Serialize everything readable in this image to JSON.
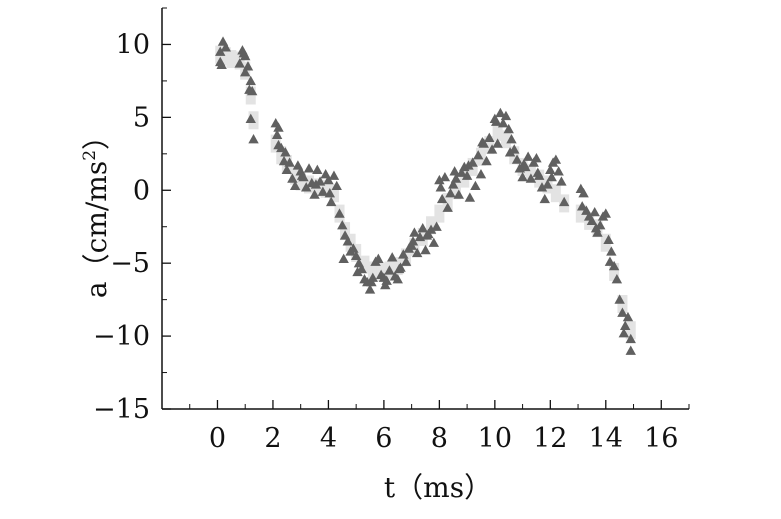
{
  "chart_data": {
    "type": "scatter",
    "xlabel": "t（ms）",
    "ylabel_prefix": "a（cm/ms",
    "ylabel_sup": "2",
    "ylabel_suffix": "）",
    "xlim": [
      -2,
      17
    ],
    "ylim": [
      -15,
      12.5
    ],
    "xticks": [
      0,
      2,
      4,
      6,
      8,
      10,
      12,
      14,
      16
    ],
    "xtick_labels": [
      "0",
      "2",
      "4",
      "6",
      "8",
      "10",
      "12",
      "14",
      "16"
    ],
    "yticks": [
      -15,
      -10,
      -5,
      0,
      5,
      10
    ],
    "ytick_labels": [
      "−15",
      "−10",
      "−5",
      "0",
      "5",
      "10"
    ],
    "grid": false,
    "colors": {
      "triangles": "#606060",
      "band": "#e3e3e3",
      "axis": "#111111"
    },
    "series": [
      {
        "marker": "triangle",
        "x": [
          0.1,
          0.1,
          0.2,
          0.3,
          0.8,
          0.9,
          1.0,
          1.0,
          1.1,
          1.2,
          1.2,
          1.25,
          1.3,
          2.1,
          2.2,
          2.2,
          2.3,
          2.4,
          2.5,
          2.6,
          2.7,
          2.8,
          2.9,
          3.0,
          3.1,
          3.2,
          3.3,
          3.4,
          3.5,
          3.6,
          3.7,
          3.8,
          3.9,
          4.0,
          4.1,
          4.2,
          4.3,
          4.4,
          4.5,
          4.6,
          4.7,
          4.8,
          4.9,
          5.0,
          5.1,
          5.2,
          5.3,
          5.4,
          5.5,
          5.6,
          5.7,
          5.8,
          5.9,
          6.0,
          6.1,
          6.2,
          6.3,
          6.4,
          6.5,
          6.6,
          6.7,
          6.8,
          6.9,
          7.0,
          7.1,
          7.2,
          7.3,
          7.4,
          7.5,
          7.6,
          7.7,
          7.8,
          7.9,
          8.0,
          8.1,
          8.2,
          8.3,
          8.4,
          8.5,
          8.6,
          8.7,
          8.8,
          8.9,
          9.0,
          9.1,
          9.2,
          9.3,
          9.4,
          9.5,
          9.6,
          9.7,
          9.8,
          9.9,
          10.0,
          10.1,
          10.2,
          10.3,
          10.4,
          10.5,
          10.6,
          10.7,
          10.8,
          10.9,
          11.0,
          11.1,
          11.2,
          11.3,
          11.4,
          11.5,
          11.6,
          11.7,
          11.8,
          11.9,
          12.0,
          12.1,
          12.2,
          12.3,
          12.4,
          12.5,
          13.1,
          13.2,
          13.3,
          13.4,
          13.5,
          13.6,
          13.7,
          13.8,
          13.9,
          14.0,
          14.1,
          14.2,
          14.3,
          14.4,
          14.5,
          14.6,
          14.7,
          14.8,
          14.9,
          14.9,
          0.15,
          0.95,
          1.15,
          2.15,
          2.45,
          3.05,
          3.55,
          4.05,
          4.55,
          5.05,
          5.55,
          6.05,
          6.55,
          7.05,
          7.55,
          8.05,
          8.55,
          9.05,
          9.55,
          10.05,
          10.55,
          11.05,
          11.55,
          12.05,
          13.15,
          13.65,
          14.15,
          14.65
        ],
        "y": [
          9.5,
          8.8,
          10.2,
          9.8,
          8.7,
          9.6,
          9.2,
          8.1,
          8.5,
          7.5,
          4.9,
          6.8,
          3.5,
          4.6,
          3.1,
          4.3,
          2.9,
          2.0,
          1.4,
          1.9,
          0.8,
          0.3,
          1.7,
          1.3,
          0.9,
          0.2,
          1.5,
          0.5,
          -0.3,
          1.4,
          0.6,
          -0.1,
          1.1,
          0.7,
          -0.8,
          1.0,
          0.3,
          -1.6,
          -2.4,
          -3.1,
          -3.5,
          -4.2,
          -4.0,
          -4.5,
          -5.0,
          -5.4,
          -6.1,
          -6.3,
          -6.8,
          -6.0,
          -4.9,
          -4.7,
          -5.8,
          -6.0,
          -6.2,
          -5.5,
          -4.6,
          -5.9,
          -6.1,
          -5.3,
          -4.4,
          -4.9,
          -4.0,
          -3.8,
          -2.9,
          -4.3,
          -3.2,
          -2.6,
          -4.1,
          -3.0,
          -2.7,
          -3.6,
          -2.5,
          0.7,
          -0.6,
          0.9,
          -1.2,
          -0.2,
          0.4,
          0.8,
          -0.3,
          1.2,
          1.6,
          1.0,
          -0.5,
          1.9,
          0.3,
          2.4,
          1.1,
          3.2,
          2.0,
          3.6,
          2.8,
          4.9,
          3.2,
          5.3,
          4.6,
          5.1,
          4.2,
          3.5,
          2.8,
          2.1,
          1.5,
          0.9,
          1.6,
          2.3,
          0.8,
          1.9,
          2.2,
          1.0,
          0.2,
          -0.6,
          0.4,
          1.4,
          1.9,
          2.1,
          1.3,
          0.6,
          -0.8,
          0.1,
          -0.2,
          -1.4,
          -1.8,
          -2.1,
          -1.5,
          -2.9,
          -2.4,
          -1.8,
          -1.6,
          -3.4,
          -4.2,
          -5.2,
          -6.1,
          -7.5,
          -8.4,
          -9.3,
          -8.7,
          -10.2,
          -11.0,
          8.6,
          9.4,
          6.9,
          3.8,
          2.6,
          1.0,
          0.4,
          -0.2,
          -4.7,
          -5.6,
          -6.3,
          -6.5,
          -5.4,
          -3.5,
          -3.1,
          0.2,
          1.3,
          1.7,
          3.3,
          4.7,
          2.6,
          1.8,
          1.2,
          0.9,
          -1.1,
          -2.6,
          -4.9,
          -9.8
        ]
      },
      {
        "marker": "band",
        "x": [
          0.1,
          0.3,
          0.5,
          0.8,
          1.0,
          1.2,
          1.3,
          2.1,
          2.3,
          2.5,
          2.8,
          3.0,
          3.3,
          3.6,
          3.9,
          4.2,
          4.4,
          4.6,
          4.8,
          5.0,
          5.3,
          5.6,
          5.9,
          6.2,
          6.5,
          6.8,
          7.1,
          7.4,
          7.7,
          8.0,
          8.3,
          8.6,
          8.9,
          9.2,
          9.5,
          9.8,
          10.1,
          10.4,
          10.7,
          11.0,
          11.3,
          11.6,
          11.9,
          12.2,
          12.5,
          13.1,
          13.4,
          13.7,
          14.0,
          14.3,
          14.6,
          14.9
        ],
        "y": [
          9.3,
          9.2,
          9.0,
          8.9,
          8.2,
          6.5,
          4.8,
          3.2,
          2.4,
          1.8,
          1.0,
          0.6,
          0.4,
          0.2,
          0.1,
          -0.2,
          -1.6,
          -2.8,
          -3.6,
          -4.3,
          -5.1,
          -5.5,
          -5.6,
          -5.5,
          -5.2,
          -4.6,
          -3.9,
          -3.2,
          -2.4,
          -1.6,
          -0.8,
          0.0,
          0.8,
          1.6,
          2.3,
          3.1,
          4.0,
          3.5,
          2.4,
          1.6,
          1.2,
          0.8,
          0.4,
          -0.2,
          -0.9,
          -1.6,
          -2.1,
          -2.6,
          -3.6,
          -5.6,
          -7.8,
          -9.6
        ]
      }
    ]
  }
}
